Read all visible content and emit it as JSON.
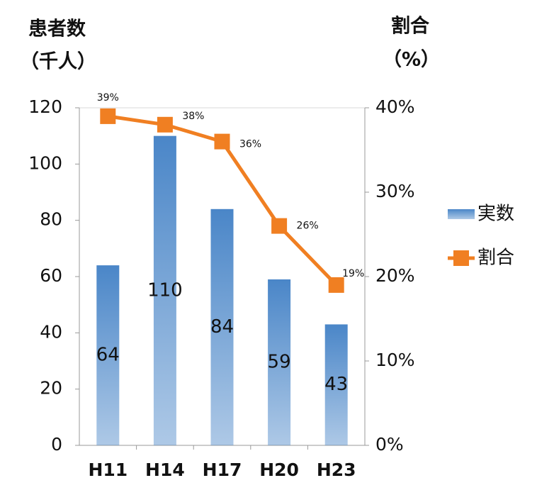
{
  "chart_data": {
    "type": "bar+line",
    "ylabel": [
      "患者数",
      "（千人）"
    ],
    "y2label": [
      "割合",
      "（%）"
    ],
    "categories": [
      "H11",
      "H14",
      "H17",
      "H20",
      "H23"
    ],
    "series": [
      {
        "name": "実数",
        "type": "bar",
        "color": "#4a86c8",
        "values": [
          64,
          110,
          84,
          59,
          43
        ]
      },
      {
        "name": "割合",
        "type": "line",
        "axis": "y2",
        "color": "#f07f22",
        "values": [
          39,
          38,
          36,
          26,
          19
        ],
        "value_labels": [
          "39%",
          "38%",
          "36%",
          "26%",
          "19%"
        ]
      }
    ],
    "ylim": [
      0,
      120
    ],
    "yticks": [
      0,
      20,
      40,
      60,
      80,
      100,
      120
    ],
    "y2lim": [
      0,
      40
    ],
    "y2ticks": [
      {
        "value": 0,
        "label": "0%"
      },
      {
        "value": 10,
        "label": "10%"
      },
      {
        "value": 20,
        "label": "20%"
      },
      {
        "value": 30,
        "label": "30%"
      },
      {
        "value": 40,
        "label": "40%"
      }
    ],
    "grid": false,
    "legend": "right"
  }
}
